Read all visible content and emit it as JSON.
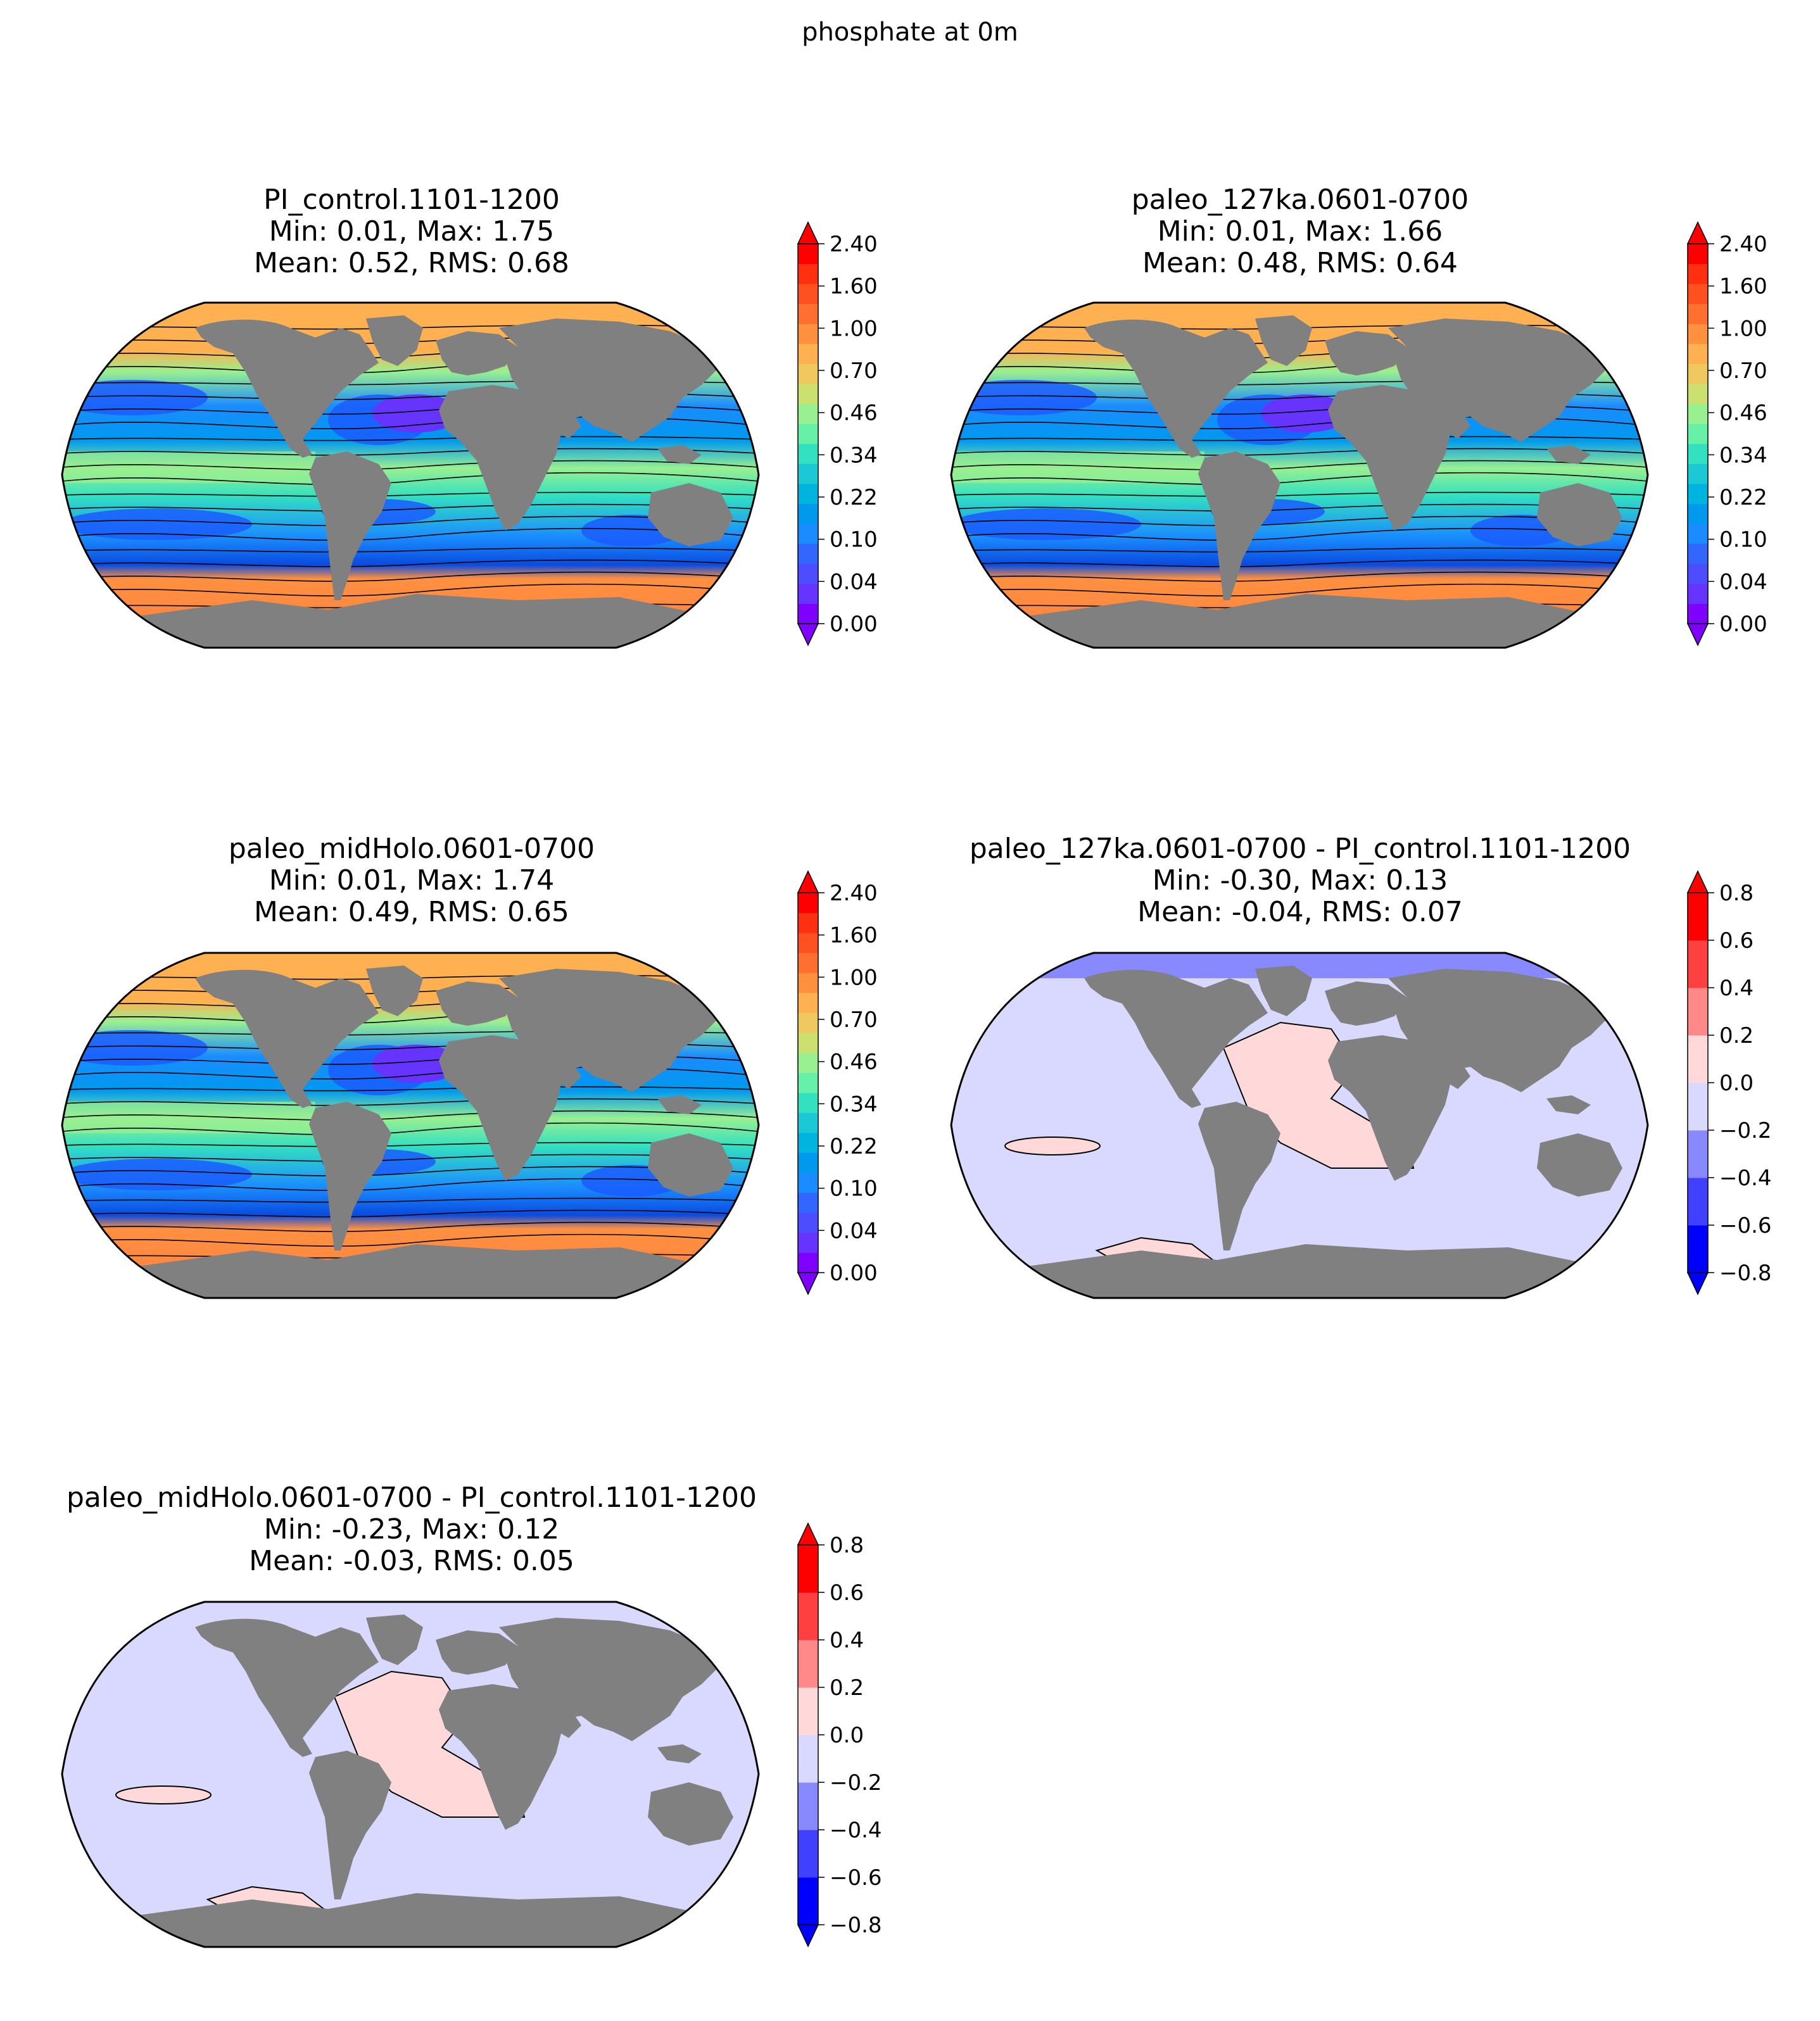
{
  "figure": {
    "title": "phosphate at 0m"
  },
  "palettes": {
    "abs": [
      "#8000ff",
      "#6633ff",
      "#4d4dff",
      "#3366ff",
      "#1a8cff",
      "#0099ee",
      "#00b4e0",
      "#1ac8d6",
      "#33e0c0",
      "#66f0a8",
      "#99f090",
      "#cce070",
      "#f0c860",
      "#ffb050",
      "#ff9040",
      "#ff7030",
      "#ff5020",
      "#ff3010",
      "#ff0000"
    ],
    "diff": [
      "#0000ff",
      "#4040ff",
      "#8888ff",
      "#d9d9ff",
      "#ffd9d9",
      "#ff8888",
      "#ff4040",
      "#ff0000"
    ],
    "land": "#808080",
    "contour": "#000000"
  },
  "panels": [
    {
      "id": "pi-control",
      "title_lines": [
        "PI_control.1101-1200",
        "Min: 0.01, Max: 1.75",
        "Mean: 0.52, RMS: 0.68"
      ],
      "kind": "abs",
      "colorbar_ticks": [
        "0.00",
        "0.04",
        "0.10",
        "0.22",
        "0.34",
        "0.46",
        "0.70",
        "1.00",
        "1.60",
        "2.40"
      ],
      "stats": {
        "min": 0.01,
        "max": 1.75,
        "mean": 0.52,
        "rms": 0.68
      }
    },
    {
      "id": "paleo-127ka",
      "title_lines": [
        "paleo_127ka.0601-0700",
        "Min: 0.01, Max: 1.66",
        "Mean: 0.48, RMS: 0.64"
      ],
      "kind": "abs",
      "colorbar_ticks": [
        "0.00",
        "0.04",
        "0.10",
        "0.22",
        "0.34",
        "0.46",
        "0.70",
        "1.00",
        "1.60",
        "2.40"
      ],
      "stats": {
        "min": 0.01,
        "max": 1.66,
        "mean": 0.48,
        "rms": 0.64
      }
    },
    {
      "id": "paleo-midholo",
      "title_lines": [
        "paleo_midHolo.0601-0700",
        "Min: 0.01, Max: 1.74",
        "Mean: 0.49, RMS: 0.65"
      ],
      "kind": "abs",
      "colorbar_ticks": [
        "0.00",
        "0.04",
        "0.10",
        "0.22",
        "0.34",
        "0.46",
        "0.70",
        "1.00",
        "1.60",
        "2.40"
      ],
      "stats": {
        "min": 0.01,
        "max": 1.74,
        "mean": 0.49,
        "rms": 0.65
      }
    },
    {
      "id": "diff-127ka",
      "title_lines": [
        "paleo_127ka.0601-0700 - PI_control.1101-1200",
        "Min: -0.30, Max: 0.13",
        "Mean: -0.04, RMS: 0.07"
      ],
      "kind": "diff",
      "colorbar_ticks": [
        "−0.8",
        "−0.6",
        "−0.4",
        "−0.2",
        "0.0",
        "0.2",
        "0.4",
        "0.6",
        "0.8"
      ],
      "stats": {
        "min": -0.3,
        "max": 0.13,
        "mean": -0.04,
        "rms": 0.07
      }
    },
    {
      "id": "diff-midholo",
      "title_lines": [
        "paleo_midHolo.0601-0700 - PI_control.1101-1200",
        "Min: -0.23, Max: 0.12",
        "Mean: -0.03, RMS: 0.05"
      ],
      "kind": "diff",
      "colorbar_ticks": [
        "−0.8",
        "−0.6",
        "−0.4",
        "−0.2",
        "0.0",
        "0.2",
        "0.4",
        "0.6",
        "0.8"
      ],
      "stats": {
        "min": -0.23,
        "max": 0.12,
        "mean": -0.03,
        "rms": 0.05
      }
    }
  ]
}
